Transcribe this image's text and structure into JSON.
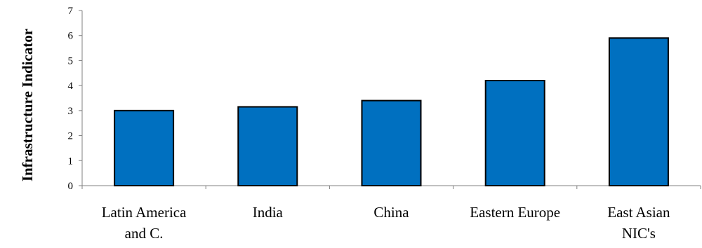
{
  "chart_data": {
    "type": "bar",
    "title": "",
    "xlabel": "",
    "ylabel": "Infrastructure Indicator",
    "categories": [
      [
        "Latin America",
        "and C."
      ],
      [
        "India"
      ],
      [
        "China"
      ],
      [
        "Eastern Europe"
      ],
      [
        "East Asian",
        "NIC's"
      ]
    ],
    "values": [
      3.0,
      3.15,
      3.4,
      4.2,
      5.9
    ],
    "ylim": [
      0,
      7
    ],
    "yticks": [
      "0",
      "1",
      "2",
      "3",
      "4",
      "5",
      "6",
      "7"
    ],
    "grid": false,
    "legend": "none",
    "colors": {
      "bar_fill": "#0070C0",
      "bar_stroke": "#000000",
      "axis": "#808080"
    }
  }
}
